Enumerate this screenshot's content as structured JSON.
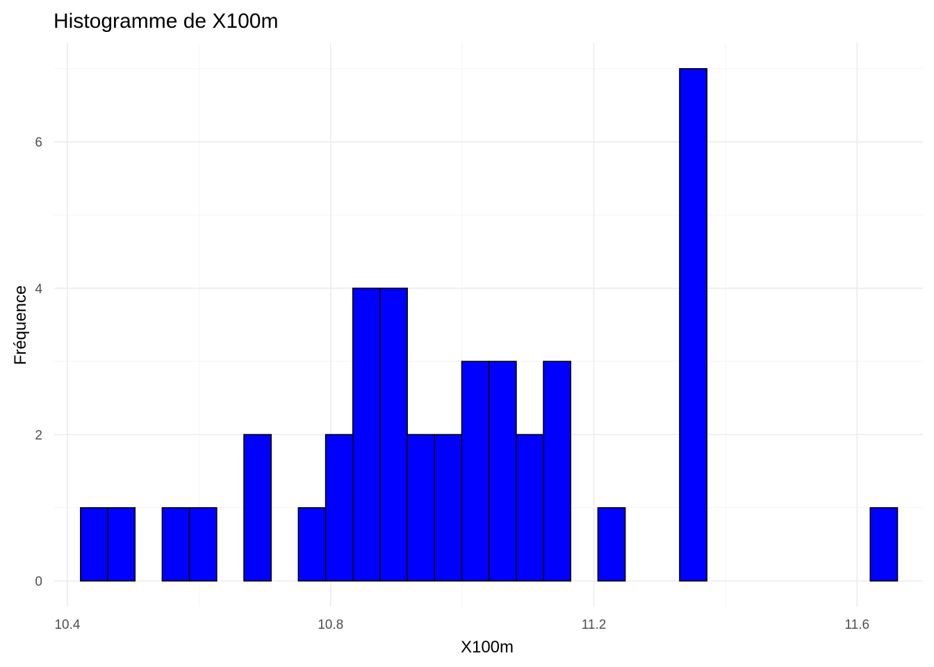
{
  "chart_data": {
    "type": "bar",
    "title": "Histogramme de X100m",
    "xlabel": "X100m",
    "ylabel": "Fréquence",
    "bin_start": 10.42,
    "bin_width": 0.04138,
    "counts": [
      1,
      1,
      0,
      1,
      1,
      0,
      2,
      0,
      1,
      2,
      4,
      4,
      2,
      2,
      3,
      3,
      2,
      3,
      0,
      1,
      0,
      0,
      7,
      0,
      0,
      0,
      0,
      0,
      0,
      1
    ],
    "xlim": [
      10.38,
      11.7
    ],
    "ylim": [
      -0.35,
      7.35
    ],
    "x_ticks": [
      10.4,
      10.8,
      11.2,
      11.6
    ],
    "x_tick_labels": [
      "10.4",
      "10.8",
      "11.2",
      "11.6"
    ],
    "x_minor_ticks": [
      10.6,
      11.0,
      11.4
    ],
    "y_ticks": [
      0,
      2,
      4,
      6
    ],
    "y_tick_labels": [
      "0",
      "2",
      "4",
      "6"
    ],
    "y_minor_ticks": [
      1,
      3,
      5,
      7
    ],
    "bar_fill": "#0000ff",
    "bar_outline": "#000000",
    "grid": true,
    "legend": "none"
  }
}
